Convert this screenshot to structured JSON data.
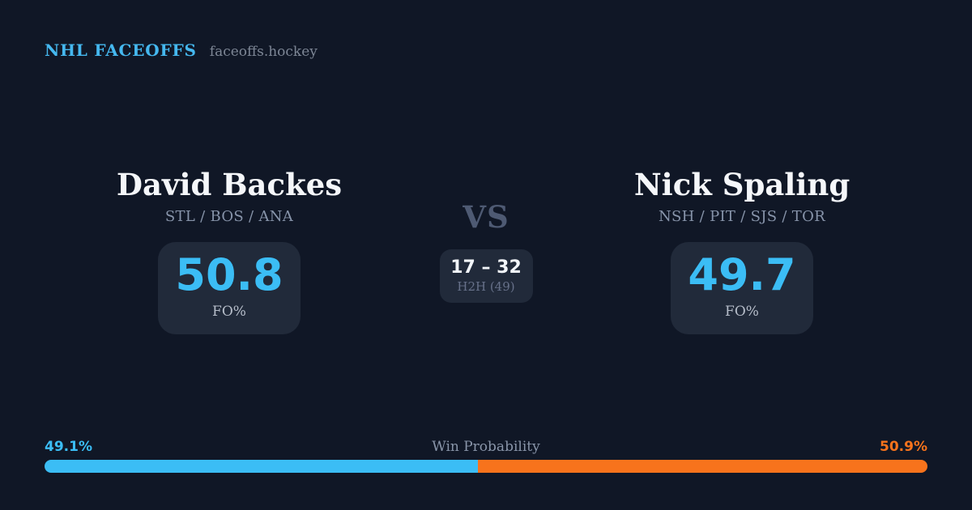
{
  "header": {
    "brand": "NHL FACEOFFS",
    "site": "faceoffs.hockey"
  },
  "player_left": {
    "name": "David Backes",
    "teams": "STL / BOS / ANA",
    "stat_value": "50.8",
    "stat_label": "FO%"
  },
  "player_right": {
    "name": "Nick Spaling",
    "teams": "NSH / PIT / SJS / TOR",
    "stat_value": "49.7",
    "stat_label": "FO%"
  },
  "matchup": {
    "vs": "VS",
    "h2h_score": "17 – 32",
    "h2h_label": "H2H (49)"
  },
  "win_probability": {
    "label": "Win Probability",
    "left_label": "49.1%",
    "right_label": "50.9%",
    "left_value": 49.1,
    "right_value": 50.9
  },
  "colors": {
    "background": "#101726",
    "card": "#212a3a",
    "accent_blue": "#3bbdf5",
    "accent_orange": "#f7731c"
  }
}
